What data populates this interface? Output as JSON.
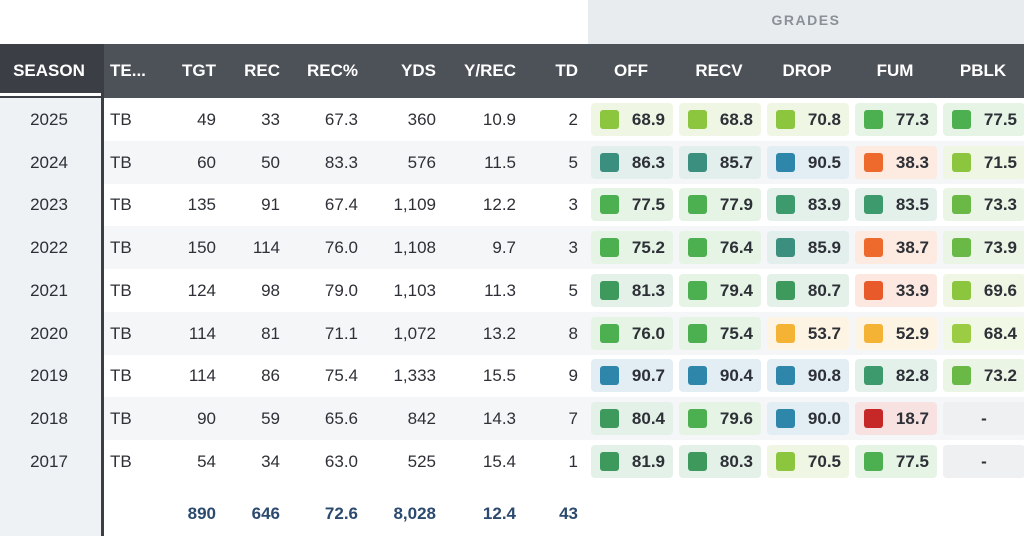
{
  "group_label": "GRADES",
  "columns": {
    "season": "SEASON",
    "team": "TE...",
    "tgt": "TGT",
    "rec": "REC",
    "rec_pct": "REC%",
    "yds": "YDS",
    "y_rec": "Y/REC",
    "td": "TD",
    "off": "OFF",
    "recv": "RECV",
    "drop": "DROP",
    "fum": "FUM",
    "pblk": "PBLK"
  },
  "rows": [
    {
      "season": "2025",
      "team": "TB",
      "tgt": "49",
      "rec": "33",
      "rec_pct": "67.3",
      "yds": "360",
      "y_rec": "10.9",
      "td": "2",
      "grades": [
        {
          "v": "68.9",
          "c": "#8cc63f"
        },
        {
          "v": "68.8",
          "c": "#8cc63f"
        },
        {
          "v": "70.8",
          "c": "#8cc63f"
        },
        {
          "v": "77.3",
          "c": "#4caf50"
        },
        {
          "v": "77.5",
          "c": "#4caf50"
        }
      ]
    },
    {
      "season": "2024",
      "team": "TB",
      "tgt": "60",
      "rec": "50",
      "rec_pct": "83.3",
      "yds": "576",
      "y_rec": "11.5",
      "td": "5",
      "grades": [
        {
          "v": "86.3",
          "c": "#3a8f7e"
        },
        {
          "v": "85.7",
          "c": "#3a8f7e"
        },
        {
          "v": "90.5",
          "c": "#2e86ab"
        },
        {
          "v": "38.3",
          "c": "#ee6a2c"
        },
        {
          "v": "71.5",
          "c": "#8cc63f"
        }
      ]
    },
    {
      "season": "2023",
      "team": "TB",
      "tgt": "135",
      "rec": "91",
      "rec_pct": "67.4",
      "yds": "1,109",
      "y_rec": "12.2",
      "td": "3",
      "grades": [
        {
          "v": "77.5",
          "c": "#4caf50"
        },
        {
          "v": "77.9",
          "c": "#4caf50"
        },
        {
          "v": "83.9",
          "c": "#3d9a6c"
        },
        {
          "v": "83.5",
          "c": "#3d9a6c"
        },
        {
          "v": "73.3",
          "c": "#6ab946"
        }
      ]
    },
    {
      "season": "2022",
      "team": "TB",
      "tgt": "150",
      "rec": "114",
      "rec_pct": "76.0",
      "yds": "1,108",
      "y_rec": "9.7",
      "td": "3",
      "grades": [
        {
          "v": "75.2",
          "c": "#4caf50"
        },
        {
          "v": "76.4",
          "c": "#4caf50"
        },
        {
          "v": "85.9",
          "c": "#3a8f7e"
        },
        {
          "v": "38.7",
          "c": "#ee6a2c"
        },
        {
          "v": "73.9",
          "c": "#6ab946"
        }
      ]
    },
    {
      "season": "2021",
      "team": "TB",
      "tgt": "124",
      "rec": "98",
      "rec_pct": "79.0",
      "yds": "1,103",
      "y_rec": "11.3",
      "td": "5",
      "grades": [
        {
          "v": "81.3",
          "c": "#3d9a5c"
        },
        {
          "v": "79.4",
          "c": "#4caf50"
        },
        {
          "v": "80.7",
          "c": "#3d9a5c"
        },
        {
          "v": "33.9",
          "c": "#e85a2a"
        },
        {
          "v": "69.6",
          "c": "#8cc63f"
        }
      ]
    },
    {
      "season": "2020",
      "team": "TB",
      "tgt": "114",
      "rec": "81",
      "rec_pct": "71.1",
      "yds": "1,072",
      "y_rec": "13.2",
      "td": "8",
      "grades": [
        {
          "v": "76.0",
          "c": "#4caf50"
        },
        {
          "v": "75.4",
          "c": "#4caf50"
        },
        {
          "v": "53.7",
          "c": "#f5b335"
        },
        {
          "v": "52.9",
          "c": "#f5b335"
        },
        {
          "v": "68.4",
          "c": "#9ccc44"
        }
      ]
    },
    {
      "season": "2019",
      "team": "TB",
      "tgt": "114",
      "rec": "86",
      "rec_pct": "75.4",
      "yds": "1,333",
      "y_rec": "15.5",
      "td": "9",
      "grades": [
        {
          "v": "90.7",
          "c": "#2e86ab"
        },
        {
          "v": "90.4",
          "c": "#2e86ab"
        },
        {
          "v": "90.8",
          "c": "#2e86ab"
        },
        {
          "v": "82.8",
          "c": "#3d9a6c"
        },
        {
          "v": "73.2",
          "c": "#6ab946"
        }
      ]
    },
    {
      "season": "2018",
      "team": "TB",
      "tgt": "90",
      "rec": "59",
      "rec_pct": "65.6",
      "yds": "842",
      "y_rec": "14.3",
      "td": "7",
      "grades": [
        {
          "v": "80.4",
          "c": "#3d9a5c"
        },
        {
          "v": "79.6",
          "c": "#4caf50"
        },
        {
          "v": "90.0",
          "c": "#2e86ab"
        },
        {
          "v": "18.7",
          "c": "#c62828"
        },
        {
          "v": "-",
          "c": ""
        }
      ]
    },
    {
      "season": "2017",
      "team": "TB",
      "tgt": "54",
      "rec": "34",
      "rec_pct": "63.0",
      "yds": "525",
      "y_rec": "15.4",
      "td": "1",
      "grades": [
        {
          "v": "81.9",
          "c": "#3d9a5c"
        },
        {
          "v": "80.3",
          "c": "#3d9a5c"
        },
        {
          "v": "70.5",
          "c": "#8cc63f"
        },
        {
          "v": "77.5",
          "c": "#4caf50"
        },
        {
          "v": "-",
          "c": ""
        }
      ]
    }
  ],
  "totals": {
    "tgt": "890",
    "rec": "646",
    "rec_pct": "72.6",
    "yds": "8,028",
    "y_rec": "12.4",
    "td": "43"
  }
}
